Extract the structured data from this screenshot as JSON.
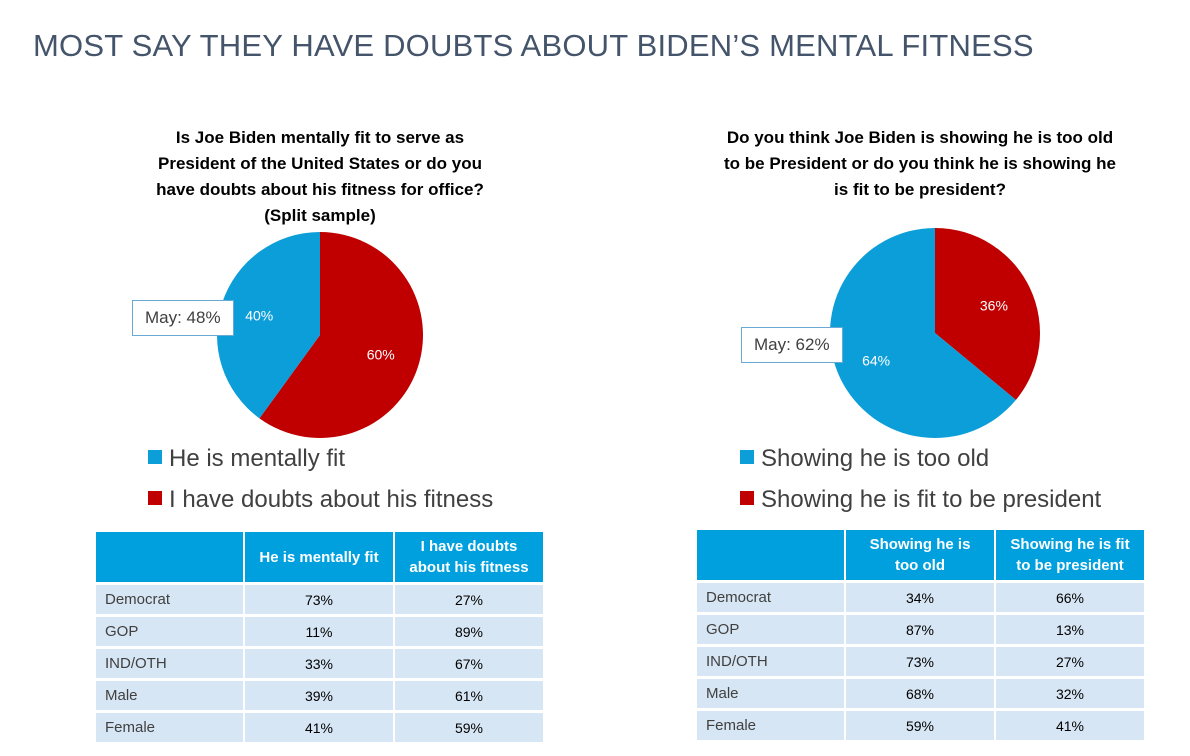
{
  "title": "MOST SAY THEY HAVE DOUBTS ABOUT BIDEN’S MENTAL FITNESS",
  "colors": {
    "blue": "#0c9ed8",
    "red": "#c00000",
    "header": "#00a0df",
    "cell": "#d7e6f4"
  },
  "chart_data": [
    {
      "type": "pie",
      "title_lines": [
        "Is Joe Biden mentally fit to serve as",
        "President of the United States or do you",
        "have doubts about his fitness for office?",
        "(Split sample)"
      ],
      "slices": [
        {
          "label": "I have doubts about his fitness",
          "value": 60,
          "display": "60%",
          "color": "#c00000"
        },
        {
          "label": "He is mentally fit",
          "value": 40,
          "display": "40%",
          "color": "#0c9ed8"
        }
      ],
      "callout": "May: 48%",
      "legend_placement": "bottom"
    },
    {
      "type": "pie",
      "title_lines": [
        "Do you think Joe Biden is showing he is too old",
        "to be President or do you think he is showing he",
        "is fit to be president?"
      ],
      "slices": [
        {
          "label": "Showing he is fit to be president",
          "value": 36,
          "display": "36%",
          "color": "#c00000"
        },
        {
          "label": "Showing he is too old",
          "value": 64,
          "display": "64%",
          "color": "#0c9ed8"
        }
      ],
      "callout": "May: 62%",
      "legend_placement": "bottom"
    },
    {
      "type": "table",
      "header_lines": [
        [
          "He is mentally fit"
        ],
        [
          "I have doubts",
          "about his fitness"
        ]
      ],
      "rows": [
        {
          "label": "Democrat",
          "values": [
            "73%",
            "27%"
          ]
        },
        {
          "label": "GOP",
          "values": [
            "11%",
            "89%"
          ]
        },
        {
          "label": "IND/OTH",
          "values": [
            "33%",
            "67%"
          ]
        },
        {
          "label": "Male",
          "values": [
            "39%",
            "61%"
          ]
        },
        {
          "label": "Female",
          "values": [
            "41%",
            "59%"
          ]
        }
      ]
    },
    {
      "type": "table",
      "header_lines": [
        [
          "Showing he is",
          "too old"
        ],
        [
          "Showing he is fit",
          "to be president"
        ]
      ],
      "rows": [
        {
          "label": "Democrat",
          "values": [
            "34%",
            "66%"
          ]
        },
        {
          "label": "GOP",
          "values": [
            "87%",
            "13%"
          ]
        },
        {
          "label": "IND/OTH",
          "values": [
            "73%",
            "27%"
          ]
        },
        {
          "label": "Male",
          "values": [
            "68%",
            "32%"
          ]
        },
        {
          "label": "Female",
          "values": [
            "59%",
            "41%"
          ]
        }
      ]
    }
  ],
  "legends": [
    [
      {
        "label": "He is mentally fit",
        "color": "#0c9ed8"
      },
      {
        "label": "I have doubts about his fitness",
        "color": "#c00000"
      }
    ],
    [
      {
        "label": "Showing he is too old",
        "color": "#0c9ed8"
      },
      {
        "label": "Showing he is fit to be president",
        "color": "#c00000"
      }
    ]
  ]
}
